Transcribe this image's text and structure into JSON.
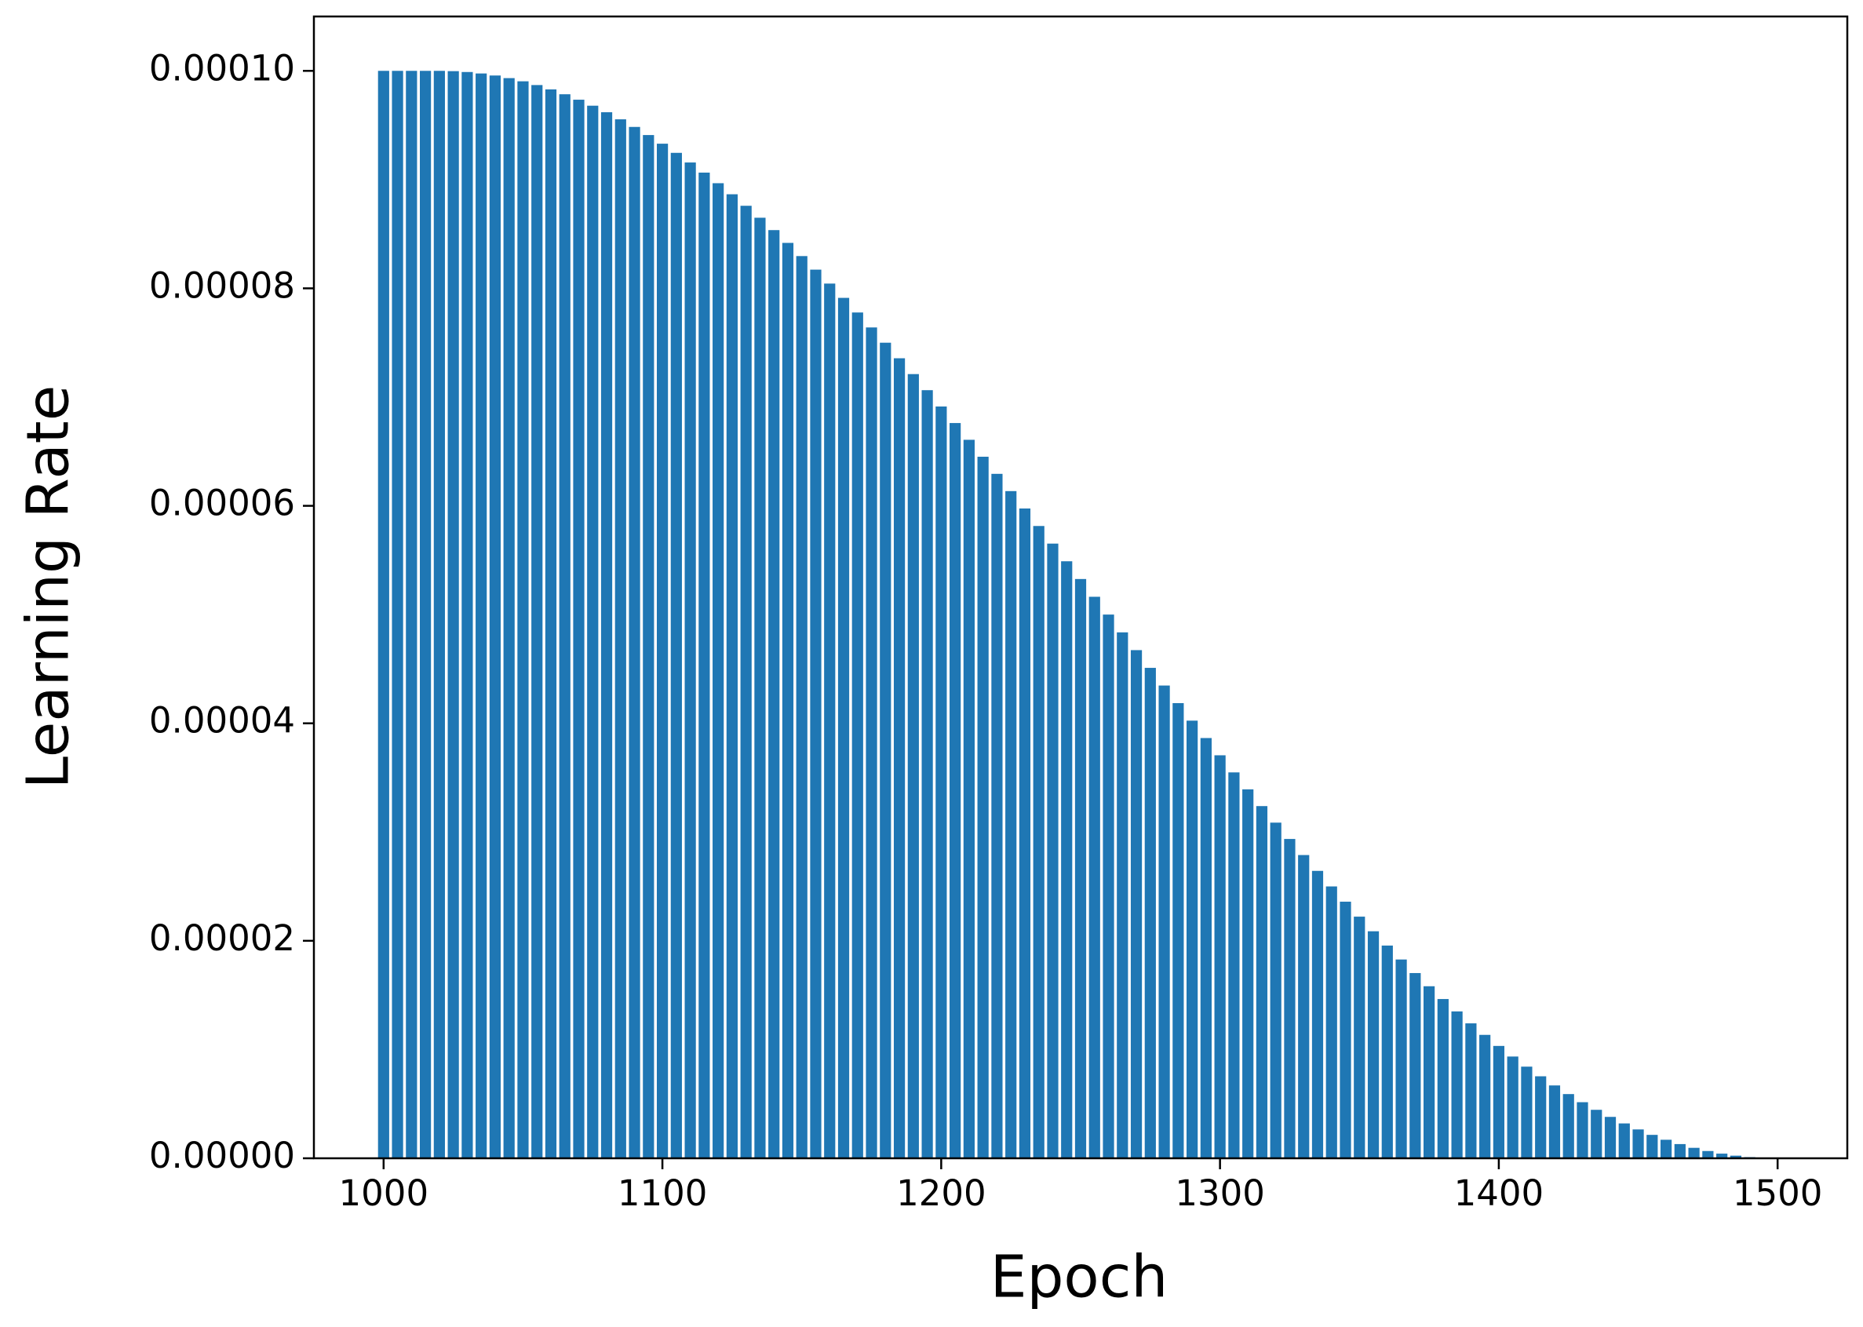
{
  "chart_data": {
    "type": "bar",
    "x_label": "Epoch",
    "y_label": "Learning Rate",
    "color": "#1f77b4",
    "x": [
      1000,
      1005,
      1010,
      1015,
      1020,
      1025,
      1030,
      1035,
      1040,
      1045,
      1050,
      1055,
      1060,
      1065,
      1070,
      1075,
      1080,
      1085,
      1090,
      1095,
      1100,
      1105,
      1110,
      1115,
      1120,
      1125,
      1130,
      1135,
      1140,
      1145,
      1150,
      1155,
      1160,
      1165,
      1170,
      1175,
      1180,
      1185,
      1190,
      1195,
      1200,
      1205,
      1210,
      1215,
      1220,
      1225,
      1230,
      1235,
      1240,
      1245,
      1250,
      1255,
      1260,
      1265,
      1270,
      1275,
      1280,
      1285,
      1290,
      1295,
      1300,
      1305,
      1310,
      1315,
      1320,
      1325,
      1330,
      1335,
      1340,
      1345,
      1350,
      1355,
      1360,
      1365,
      1370,
      1375,
      1380,
      1385,
      1390,
      1395,
      1400,
      1405,
      1410,
      1415,
      1420,
      1425,
      1430,
      1435,
      1440,
      1445,
      1450,
      1455,
      1460,
      1465,
      1470,
      1475,
      1480,
      1485,
      1490,
      1495
    ],
    "values": [
      0.0001,
      0.0001,
      0.0001,
      0.0001,
      0.0001,
      9.9973e-05,
      9.9893e-05,
      9.9759e-05,
      9.9572e-05,
      9.9332e-05,
      9.9039e-05,
      9.8694e-05,
      9.8296e-05,
      9.7847e-05,
      9.7347e-05,
      9.6795e-05,
      9.6194e-05,
      9.5543e-05,
      9.4843e-05,
      9.4096e-05,
      9.3301e-05,
      9.246e-05,
      9.1573e-05,
      9.0643e-05,
      8.9668e-05,
      8.8651e-05,
      8.7592e-05,
      8.6493e-05,
      8.5355e-05,
      8.418e-05,
      8.2967e-05,
      8.172e-05,
      8.0438e-05,
      7.9124e-05,
      7.7779e-05,
      7.6404e-05,
      7.5e-05,
      7.357e-05,
      7.2114e-05,
      7.0635e-05,
      6.9134e-05,
      6.7613e-05,
      6.6072e-05,
      6.4514e-05,
      6.2941e-05,
      6.1354e-05,
      5.9755e-05,
      5.8145e-05,
      5.6526e-05,
      5.4901e-05,
      5.327e-05,
      5.1636e-05,
      5e-05,
      4.8364e-05,
      4.673e-05,
      4.5099e-05,
      4.3474e-05,
      4.1855e-05,
      4.0245e-05,
      3.8646e-05,
      3.7059e-05,
      3.5486e-05,
      3.3928e-05,
      3.2387e-05,
      3.0866e-05,
      2.9365e-05,
      2.7886e-05,
      2.643e-05,
      2.5e-05,
      2.3596e-05,
      2.2221e-05,
      2.0876e-05,
      1.9562e-05,
      1.828e-05,
      1.7033e-05,
      1.582e-05,
      1.4645e-05,
      1.3507e-05,
      1.2408e-05,
      1.1349e-05,
      1.0332e-05,
      9.357e-06,
      8.427e-06,
      7.54e-06,
      6.699e-06,
      5.904e-06,
      5.157e-06,
      4.457e-06,
      3.806e-06,
      3.205e-06,
      2.653e-06,
      2.153e-06,
      1.704e-06,
      1.306e-06,
      9.61e-07,
      6.68e-07,
      4.28e-07,
      2.41e-07,
      1.07e-07,
      2.7e-08
    ],
    "xlim": [
      975,
      1525
    ],
    "xticks": [
      1000,
      1100,
      1200,
      1300,
      1400,
      1500
    ],
    "ylim": [
      0,
      0.000105
    ],
    "yticks": [
      {
        "value": 0,
        "label": "0.00000"
      },
      {
        "value": 2e-05,
        "label": "0.00002"
      },
      {
        "value": 4e-05,
        "label": "0.00004"
      },
      {
        "value": 6e-05,
        "label": "0.00006"
      },
      {
        "value": 8e-05,
        "label": "0.00008"
      },
      {
        "value": 0.0001,
        "label": "0.00010"
      }
    ]
  }
}
